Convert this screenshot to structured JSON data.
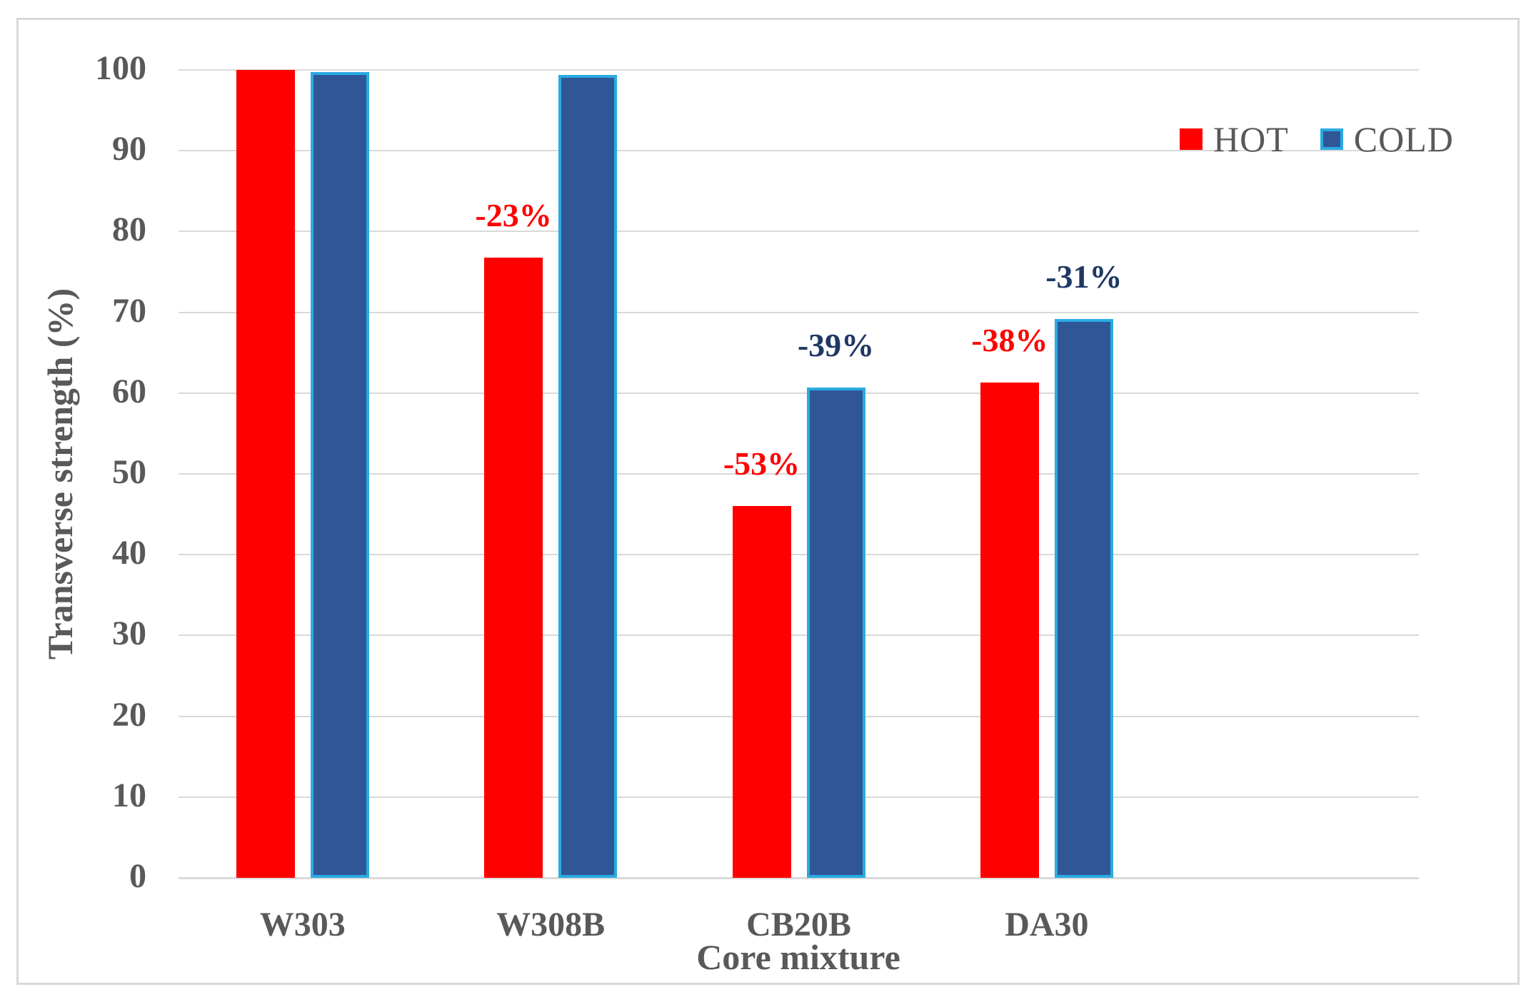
{
  "chart_data": {
    "type": "bar",
    "title": "",
    "xlabel": "Core mixture",
    "ylabel": "Transverse strength (%)",
    "categories": [
      "W303",
      "W308B",
      "CB20B",
      "DA30"
    ],
    "series": [
      {
        "name": "HOT",
        "color": "#FF0000",
        "border_color": null,
        "values": [
          100,
          76.8,
          46,
          61.3
        ],
        "bar_labels": [
          "",
          "-23%",
          "-53%",
          "-38%"
        ],
        "label_color": "#FF0000"
      },
      {
        "name": "COLD",
        "color": "#2F5797",
        "border_color": "#29ABE2",
        "values": [
          99.7,
          99.4,
          60.7,
          69.2
        ],
        "bar_labels": [
          "",
          "",
          "-39%",
          "-31%"
        ],
        "label_color": "#1F3864"
      }
    ],
    "ylim": [
      0,
      100
    ],
    "yticks": [
      0,
      10,
      20,
      30,
      40,
      50,
      60,
      70,
      80,
      90,
      100
    ],
    "grid": true,
    "grid_color": "#D9D9D9",
    "axis_text_color": "#595959",
    "legend_position": "top-right",
    "empty_trailing_slots": 1
  }
}
